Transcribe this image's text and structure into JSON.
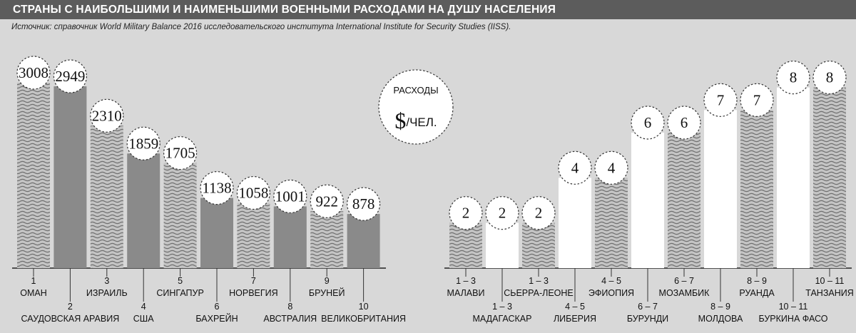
{
  "title": "СТРАНЫ С НАИБОЛЬШИМИ И НАИМЕНЬШИМИ ВОЕННЫМИ РАСХОДАМИ НА ДУШУ НАСЕЛЕНИЯ",
  "source": "Источник: справочник World Military Balance 2016 исследовательского института International Institute for Security Studies (IISS).",
  "legend": {
    "word": "РАСХОДЫ",
    "dollar": "$",
    "unit": "/ЧЕЛ."
  },
  "colors": {
    "gray_bar": "#8a8a8a",
    "white_bar": "#ffffff",
    "wave": "#7a7a7a",
    "title_bg": "#5c5c5c"
  },
  "chart_data": [
    {
      "type": "bar",
      "ylim": [
        0,
        3100
      ],
      "categories": [
        "ОМАН",
        "САУДОВСКАЯ АРАВИЯ",
        "ИЗРАИЛЬ",
        "США",
        "СИНГАПУР",
        "БАХРЕЙН",
        "НОРВЕГИЯ",
        "АВСТРАЛИЯ",
        "БРУНЕЙ",
        "ВЕЛИКОБРИТАНИЯ"
      ],
      "ranks": [
        "1",
        "2",
        "3",
        "4",
        "5",
        "6",
        "7",
        "8",
        "9",
        "10"
      ],
      "values": [
        3008,
        2949,
        2310,
        1859,
        1705,
        1138,
        1058,
        1001,
        922,
        878
      ],
      "labels": [
        "3008",
        "2949",
        "2310",
        "1859",
        "1705",
        "1138",
        "1058",
        "1001",
        "922",
        "878"
      ],
      "fills": [
        "wave",
        "gray",
        "wave",
        "gray",
        "wave",
        "gray",
        "wave",
        "gray",
        "wave",
        "gray"
      ]
    },
    {
      "type": "bar",
      "ylim": [
        0,
        8.4
      ],
      "categories": [
        "МАЛАВИ",
        "МАДАГАСКАР",
        "СЬЕРРА-ЛЕОНЕ",
        "ЛИБЕРИЯ",
        "ЭФИОПИЯ",
        "БУРУНДИ",
        "МОЗАМБИК",
        "МОЛДОВА",
        "РУАНДА",
        "БУРКИНА ФАСО",
        "ТАНЗАНИЯ"
      ],
      "ranks": [
        "1 – 3",
        "1 – 3",
        "1 – 3",
        "4 – 5",
        "4 – 5",
        "6 – 7",
        "6 – 7",
        "8 – 9",
        "8 – 9",
        "10 – 11",
        "10 – 11"
      ],
      "values": [
        2,
        2,
        2,
        4,
        4,
        6,
        6,
        7,
        7,
        8,
        8
      ],
      "labels": [
        "2",
        "2",
        "2",
        "4",
        "4",
        "6",
        "6",
        "7",
        "7",
        "8",
        "8"
      ],
      "fills": [
        "wave",
        "white",
        "wave",
        "white",
        "wave",
        "white",
        "wave",
        "white",
        "wave",
        "white",
        "wave"
      ]
    }
  ]
}
